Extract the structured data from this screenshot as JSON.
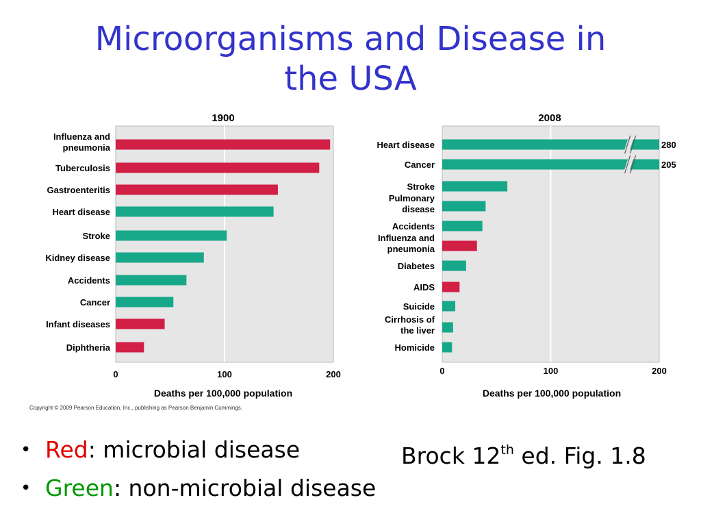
{
  "title": {
    "line1": "Microorganisms and Disease in",
    "line2": "the USA"
  },
  "colors": {
    "title": "#3333cc",
    "microbial": "#d11f45",
    "non_microbial": "#17a88a",
    "plot_bg": "#e6e6e6"
  },
  "chart_data": [
    {
      "type": "bar",
      "orientation": "horizontal",
      "title": "1900",
      "xlabel": "Deaths per 100,000 population",
      "xlim": [
        0,
        200
      ],
      "xticks": [
        0,
        100,
        200
      ],
      "grid": true,
      "categories": [
        "Influenza and\npneumonia",
        "Tuberculosis",
        "Gastroenteritis",
        "Heart disease",
        "Stroke",
        "Kidney disease",
        "Accidents",
        "Cancer",
        "Infant diseases",
        "Diphtheria"
      ],
      "values": [
        197,
        187,
        149,
        145,
        102,
        81,
        65,
        53,
        45,
        26
      ],
      "microbial": [
        true,
        true,
        true,
        false,
        false,
        false,
        false,
        false,
        true,
        true
      ]
    },
    {
      "type": "bar",
      "orientation": "horizontal",
      "title": "2008",
      "xlabel": "Deaths per 100,000 population",
      "xlim": [
        0,
        200
      ],
      "xticks": [
        0,
        100,
        200
      ],
      "grid": true,
      "categories": [
        "Heart disease",
        "Cancer",
        "Stroke",
        "Pulmonary\ndisease",
        "Accidents",
        "Influenza and\npneumonia",
        "Diabetes",
        "AIDS",
        "Suicide",
        "Cirrhosis of\nthe liver",
        "Homicide"
      ],
      "values": [
        280,
        205,
        60,
        40,
        37,
        32,
        22,
        16,
        12,
        10,
        9
      ],
      "value_labels": [
        "280",
        "205",
        "",
        "",
        "",
        "",
        "",
        "",
        "",
        "",
        ""
      ],
      "axis_break": [
        true,
        true,
        false,
        false,
        false,
        false,
        false,
        false,
        false,
        false,
        false
      ],
      "microbial": [
        false,
        false,
        false,
        false,
        false,
        true,
        false,
        true,
        false,
        false,
        false
      ]
    }
  ],
  "copyright": "Copyright © 2009 Pearson Education, Inc., publishing as Pearson Benjamin Cummings.",
  "legend": {
    "red_word": "Red",
    "red_rest": ": microbial disease",
    "green_word": "Green",
    "green_rest": ": non-microbial disease",
    "bullet": "•"
  },
  "reference": {
    "before": "Brock 12",
    "sup": "th",
    "after": " ed. Fig. 1.8"
  }
}
